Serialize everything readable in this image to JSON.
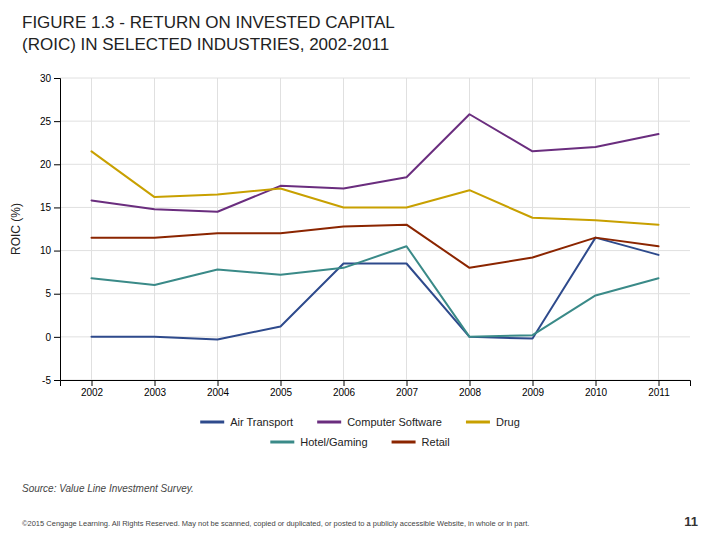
{
  "chart_data": {
    "type": "line",
    "title": [
      "FIGURE 1.3 - RETURN ON INVESTED CAPITAL",
      "(ROIC) IN SELECTED INDUSTRIES, 2002-2011"
    ],
    "y_label": "ROIC (%)",
    "x": [
      2002,
      2003,
      2004,
      2005,
      2006,
      2007,
      2008,
      2009,
      2010,
      2011
    ],
    "series": [
      {
        "name": "Air Transport",
        "color": "#2e4a8c",
        "values": [
          0,
          0,
          -0.3,
          1.2,
          8.5,
          8.5,
          0,
          -0.2,
          11.5,
          9.5
        ]
      },
      {
        "name": "Computer Software",
        "color": "#6a2d7e",
        "values": [
          15.8,
          14.8,
          14.5,
          17.5,
          17.2,
          18.5,
          25.8,
          21.5,
          22.0,
          23.5
        ]
      },
      {
        "name": "Drug",
        "color": "#c8a000",
        "values": [
          21.5,
          16.2,
          16.5,
          17.2,
          15.0,
          15.0,
          17.0,
          13.8,
          13.5,
          13.0
        ]
      },
      {
        "name": "Hotel/Gaming",
        "color": "#3a8a88",
        "values": [
          6.8,
          6.0,
          7.8,
          7.2,
          8.0,
          10.5,
          0,
          0.2,
          4.8,
          6.8
        ]
      },
      {
        "name": "Retail",
        "color": "#8b2500",
        "values": [
          11.5,
          11.5,
          12.0,
          12.0,
          12.8,
          13.0,
          8.0,
          9.2,
          11.5,
          10.5
        ]
      }
    ],
    "xlim": [
      2001.5,
      2011.5
    ],
    "xticks": [
      2002,
      2003,
      2004,
      2005,
      2006,
      2007,
      2008,
      2009,
      2010,
      2011
    ],
    "ylim": [
      -5,
      30
    ],
    "yticks": [
      -5,
      0,
      5,
      10,
      15,
      20,
      25,
      30
    ],
    "grid": true,
    "legend": "bottom",
    "annotations": [
      "Source: Value Line Investment Survey.",
      "©2015 Cengage Learning. All Rights Reserved. May not be scanned, copied or duplicated, or posted to a publicly accessible Website, in whole or in part.",
      "11"
    ]
  }
}
